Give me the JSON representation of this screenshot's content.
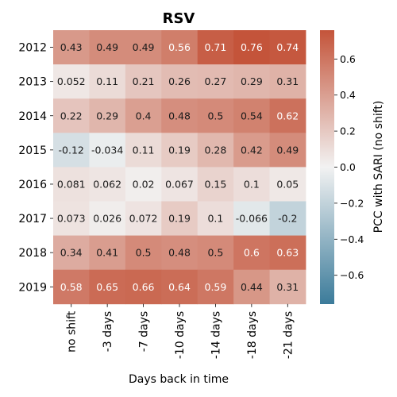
{
  "chart_data": {
    "type": "heatmap",
    "title": "RSV",
    "xlabel": "Days back in time",
    "ylabel": "",
    "colorbar_label": "PCC with SARI (no shift)",
    "x_categories": [
      "no shift",
      "-3 days",
      "-7 days",
      "-10 days",
      "-14 days",
      "-18 days",
      "-21 days"
    ],
    "y_categories": [
      "2012",
      "2013",
      "2014",
      "2015",
      "2016",
      "2017",
      "2018",
      "2019"
    ],
    "values": [
      [
        0.43,
        0.49,
        0.49,
        0.56,
        0.71,
        0.76,
        0.74
      ],
      [
        0.052,
        0.11,
        0.21,
        0.26,
        0.27,
        0.29,
        0.31
      ],
      [
        0.22,
        0.29,
        0.4,
        0.48,
        0.5,
        0.54,
        0.62
      ],
      [
        -0.12,
        -0.034,
        0.11,
        0.19,
        0.28,
        0.42,
        0.49
      ],
      [
        0.081,
        0.062,
        0.02,
        0.067,
        0.15,
        0.1,
        0.05
      ],
      [
        0.073,
        0.026,
        0.072,
        0.19,
        0.1,
        -0.066,
        -0.2
      ],
      [
        0.34,
        0.41,
        0.5,
        0.48,
        0.5,
        0.6,
        0.63
      ],
      [
        0.58,
        0.65,
        0.66,
        0.64,
        0.59,
        0.44,
        0.31
      ]
    ],
    "value_labels": [
      [
        "0.43",
        "0.49",
        "0.49",
        "0.56",
        "0.71",
        "0.76",
        "0.74"
      ],
      [
        "0.052",
        "0.11",
        "0.21",
        "0.26",
        "0.27",
        "0.29",
        "0.31"
      ],
      [
        "0.22",
        "0.29",
        "0.4",
        "0.48",
        "0.5",
        "0.54",
        "0.62"
      ],
      [
        "-0.12",
        "-0.034",
        "0.11",
        "0.19",
        "0.28",
        "0.42",
        "0.49"
      ],
      [
        "0.081",
        "0.062",
        "0.02",
        "0.067",
        "0.15",
        "0.1",
        "0.05"
      ],
      [
        "0.073",
        "0.026",
        "0.072",
        "0.19",
        "0.1",
        "-0.066",
        "-0.2"
      ],
      [
        "0.34",
        "0.41",
        "0.5",
        "0.48",
        "0.5",
        "0.6",
        "0.63"
      ],
      [
        "0.58",
        "0.65",
        "0.66",
        "0.64",
        "0.59",
        "0.44",
        "0.31"
      ]
    ],
    "color_range": [
      -0.76,
      0.76
    ],
    "colorbar_ticks": [
      -0.6,
      -0.4,
      -0.2,
      0.0,
      0.2,
      0.4,
      0.6
    ],
    "colorbar_tick_labels": [
      "−0.6",
      "−0.4",
      "−0.2",
      "0.0",
      "0.2",
      "0.4",
      "0.6"
    ],
    "colormap": {
      "negative": "#3b7b9a",
      "center": "#f2f2f2",
      "positive": "#c4543a"
    },
    "grid": false
  }
}
